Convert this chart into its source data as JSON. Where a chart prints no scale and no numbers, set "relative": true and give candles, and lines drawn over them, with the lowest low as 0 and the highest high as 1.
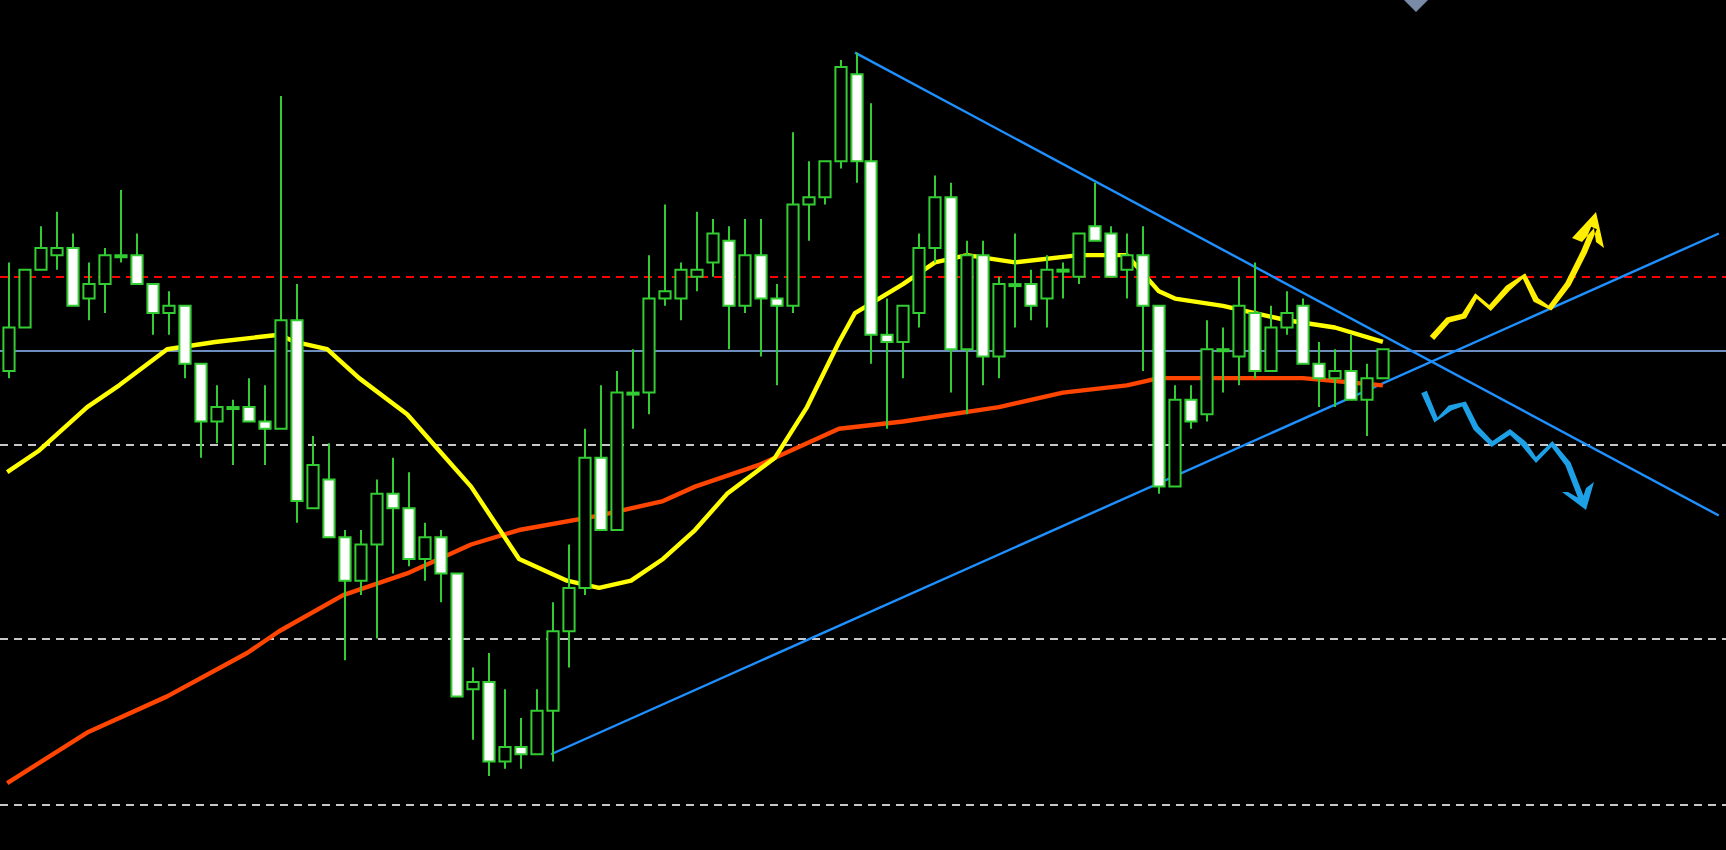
{
  "chart_data": {
    "type": "candlestick",
    "relative": true,
    "grid": false,
    "legend": false,
    "categories": [
      null,
      null,
      null,
      null,
      null,
      null,
      null,
      null,
      null,
      null,
      null,
      null,
      null,
      null,
      null,
      null,
      null,
      null,
      null,
      null,
      null,
      null,
      null,
      null,
      null,
      null,
      null,
      null,
      null,
      null,
      null,
      null,
      null,
      null,
      null,
      null,
      null,
      null,
      null,
      null,
      null,
      null,
      null,
      null,
      null,
      null,
      null,
      null,
      null,
      null,
      null,
      null,
      null,
      null,
      null,
      null,
      null,
      null,
      null,
      null,
      null,
      null,
      null,
      null,
      null,
      null,
      null,
      null,
      null,
      null,
      null,
      null,
      null,
      null,
      null,
      null,
      null,
      null,
      null,
      null,
      null,
      null,
      null,
      null,
      null,
      null,
      null,
      null,
      null,
      null,
      null,
      null,
      null,
      null,
      null,
      null,
      null,
      null,
      null,
      null,
      null,
      null,
      null,
      null,
      null,
      null,
      null,
      null
    ],
    "ohlc": [
      [
        0.56,
        0.71,
        0.55,
        0.62
      ],
      [
        0.62,
        0.7,
        0.62,
        0.7
      ],
      [
        0.7,
        0.76,
        0.7,
        0.73
      ],
      [
        0.72,
        0.78,
        0.7,
        0.73
      ],
      [
        0.73,
        0.75,
        0.65,
        0.65
      ],
      [
        0.66,
        0.71,
        0.63,
        0.68
      ],
      [
        0.68,
        0.73,
        0.64,
        0.72
      ],
      [
        0.72,
        0.81,
        0.71,
        0.72
      ],
      [
        0.72,
        0.75,
        0.68,
        0.68
      ],
      [
        0.68,
        0.68,
        0.61,
        0.64
      ],
      [
        0.64,
        0.67,
        0.61,
        0.65
      ],
      [
        0.65,
        0.65,
        0.55,
        0.57
      ],
      [
        0.57,
        0.57,
        0.44,
        0.49
      ],
      [
        0.49,
        0.54,
        0.46,
        0.51
      ],
      [
        0.51,
        0.52,
        0.43,
        0.51
      ],
      [
        0.51,
        0.55,
        0.49,
        0.49
      ],
      [
        0.49,
        0.54,
        0.43,
        0.48
      ],
      [
        0.48,
        0.94,
        0.48,
        0.63
      ],
      [
        0.63,
        0.68,
        0.35,
        0.38
      ],
      [
        0.37,
        0.47,
        0.37,
        0.43
      ],
      [
        0.41,
        0.46,
        0.33,
        0.33
      ],
      [
        0.33,
        0.34,
        0.16,
        0.27
      ],
      [
        0.27,
        0.34,
        0.25,
        0.32
      ],
      [
        0.32,
        0.41,
        0.19,
        0.39
      ],
      [
        0.39,
        0.44,
        0.28,
        0.37
      ],
      [
        0.37,
        0.42,
        0.29,
        0.3
      ],
      [
        0.3,
        0.35,
        0.27,
        0.33
      ],
      [
        0.33,
        0.34,
        0.24,
        0.28
      ],
      [
        0.28,
        0.28,
        0.11,
        0.11
      ],
      [
        0.12,
        0.15,
        0.05,
        0.13
      ],
      [
        0.13,
        0.17,
        0,
        0.02
      ],
      [
        0.02,
        0.12,
        0.01,
        0.04
      ],
      [
        0.04,
        0.08,
        0.01,
        0.03
      ],
      [
        0.03,
        0.12,
        0.03,
        0.09
      ],
      [
        0.09,
        0.24,
        0.02,
        0.2
      ],
      [
        0.2,
        0.32,
        0.15,
        0.26
      ],
      [
        0.26,
        0.48,
        0.25,
        0.44
      ],
      [
        0.44,
        0.54,
        0.34,
        0.34
      ],
      [
        0.34,
        0.56,
        0.34,
        0.53
      ],
      [
        0.53,
        0.59,
        0.48,
        0.53
      ],
      [
        0.53,
        0.72,
        0.5,
        0.66
      ],
      [
        0.66,
        0.79,
        0.65,
        0.67
      ],
      [
        0.66,
        0.71,
        0.63,
        0.7
      ],
      [
        0.69,
        0.78,
        0.67,
        0.7
      ],
      [
        0.71,
        0.77,
        0.69,
        0.75
      ],
      [
        0.74,
        0.76,
        0.59,
        0.65
      ],
      [
        0.65,
        0.77,
        0.64,
        0.72
      ],
      [
        0.72,
        0.77,
        0.58,
        0.66
      ],
      [
        0.66,
        0.68,
        0.54,
        0.65
      ],
      [
        0.65,
        0.89,
        0.64,
        0.79
      ],
      [
        0.79,
        0.85,
        0.74,
        0.8
      ],
      [
        0.8,
        0.85,
        0.79,
        0.85
      ],
      [
        0.85,
        0.99,
        0.84,
        0.98
      ],
      [
        0.97,
        1,
        0.82,
        0.85
      ],
      [
        0.85,
        0.93,
        0.57,
        0.61
      ],
      [
        0.61,
        0.66,
        0.48,
        0.6
      ],
      [
        0.6,
        0.65,
        0.55,
        0.65
      ],
      [
        0.64,
        0.75,
        0.62,
        0.73
      ],
      [
        0.73,
        0.83,
        0.71,
        0.8
      ],
      [
        0.8,
        0.82,
        0.53,
        0.59
      ],
      [
        0.59,
        0.74,
        0.5,
        0.72
      ],
      [
        0.72,
        0.74,
        0.54,
        0.58
      ],
      [
        0.58,
        0.69,
        0.55,
        0.68
      ],
      [
        0.68,
        0.75,
        0.62,
        0.68
      ],
      [
        0.68,
        0.7,
        0.63,
        0.65
      ],
      [
        0.66,
        0.72,
        0.62,
        0.7
      ],
      [
        0.7,
        0.71,
        0.66,
        0.7
      ],
      [
        0.69,
        0.75,
        0.68,
        0.75
      ],
      [
        0.76,
        0.82,
        0.74,
        0.74
      ],
      [
        0.75,
        0.76,
        0.69,
        0.69
      ],
      [
        0.7,
        0.75,
        0.66,
        0.72
      ],
      [
        0.72,
        0.76,
        0.56,
        0.65
      ],
      [
        0.65,
        0.65,
        0.39,
        0.4
      ],
      [
        0.4,
        0.54,
        0.4,
        0.52
      ],
      [
        0.52,
        0.54,
        0.48,
        0.49
      ],
      [
        0.5,
        0.63,
        0.49,
        0.59
      ],
      [
        0.59,
        0.62,
        0.53,
        0.59
      ],
      [
        0.58,
        0.69,
        0.54,
        0.65
      ],
      [
        0.64,
        0.71,
        0.55,
        0.56
      ],
      [
        0.56,
        0.65,
        0.56,
        0.62
      ],
      [
        0.62,
        0.67,
        0.61,
        0.64
      ],
      [
        0.65,
        0.66,
        0.57,
        0.57
      ],
      [
        0.57,
        0.6,
        0.51,
        0.55
      ],
      [
        0.55,
        0.59,
        0.51,
        0.56
      ],
      [
        0.56,
        0.61,
        0.52,
        0.52
      ],
      [
        0.52,
        0.57,
        0.47,
        0.55
      ],
      [
        0.55,
        0.59,
        0.55,
        0.59
      ],
      null,
      null,
      null,
      null,
      null,
      null,
      null,
      null,
      null,
      null,
      null,
      null,
      null,
      null,
      null,
      null,
      null,
      null,
      null,
      null,
      null
    ],
    "series": [
      {
        "type": "line",
        "color": "#ffff00",
        "values": [
          0.42,
          null,
          0.45,
          null,
          null,
          0.51,
          null,
          0.54,
          null,
          null,
          0.59,
          null,
          null,
          0.6,
          null,
          null,
          null,
          0.61,
          0.6,
          null,
          0.59,
          null,
          0.55,
          null,
          null,
          0.5,
          null,
          0.45,
          null,
          0.4,
          null,
          null,
          0.3,
          null,
          null,
          0.27,
          null,
          0.26,
          null,
          0.27,
          null,
          0.3,
          null,
          0.34,
          null,
          0.39,
          null,
          null,
          0.44,
          null,
          0.51,
          null,
          0.6,
          0.64,
          null,
          null,
          0.68,
          null,
          0.71,
          null,
          0.72,
          null,
          null,
          0.71,
          null,
          null,
          null,
          0.72,
          null,
          null,
          0.72,
          null,
          0.67,
          0.66,
          null,
          null,
          0.65,
          null,
          null,
          null,
          0.63,
          null,
          null,
          0.62,
          null,
          null,
          0.6,
          null,
          null,
          null,
          null,
          null,
          null,
          null,
          null,
          null,
          null,
          null,
          null,
          null,
          null,
          null,
          null,
          null,
          null,
          null,
          null,
          null
        ]
      },
      {
        "type": "line",
        "color": "#ff4500",
        "values": [
          -0.01,
          null,
          null,
          null,
          null,
          0.06,
          null,
          null,
          null,
          null,
          0.11,
          null,
          null,
          null,
          null,
          0.17,
          null,
          0.2,
          null,
          null,
          null,
          0.25,
          null,
          null,
          null,
          0.28,
          null,
          null,
          null,
          0.32,
          null,
          null,
          0.34,
          null,
          null,
          null,
          null,
          0.36,
          null,
          null,
          null,
          0.38,
          null,
          0.4,
          null,
          null,
          null,
          0.43,
          null,
          null,
          0.46,
          null,
          0.48,
          null,
          null,
          null,
          0.49,
          null,
          null,
          null,
          null,
          null,
          0.51,
          null,
          null,
          null,
          0.53,
          null,
          null,
          null,
          0.54,
          null,
          0.55,
          null,
          null,
          null,
          null,
          0.55,
          null,
          null,
          null,
          0.55,
          null,
          null,
          null,
          null,
          0.54,
          null,
          null,
          null,
          null,
          null,
          null,
          null,
          null,
          null,
          null,
          null,
          null,
          null,
          null,
          null,
          null,
          null,
          null,
          null,
          null,
          null
        ]
      },
      {
        "type": "line",
        "color": "#1e90ff",
        "values": [
          null,
          null,
          null,
          null,
          null,
          null,
          null,
          null,
          null,
          null,
          null,
          null,
          null,
          null,
          null,
          null,
          null,
          null,
          null,
          null,
          null,
          null,
          null,
          null,
          null,
          null,
          null,
          null,
          null,
          null,
          null,
          null,
          null,
          null,
          0.03,
          null,
          null,
          null,
          null,
          null,
          null,
          null,
          null,
          null,
          null,
          null,
          null,
          null,
          null,
          null,
          null,
          null,
          null,
          null,
          null,
          null,
          null,
          null,
          null,
          null,
          null,
          null,
          null,
          null,
          null,
          null,
          null,
          null,
          null,
          null,
          null,
          null,
          null,
          null,
          null,
          null,
          null,
          null,
          null,
          null,
          null,
          null,
          null,
          null,
          null,
          null,
          null,
          null,
          null,
          null,
          null,
          null,
          null,
          null,
          null,
          null,
          null,
          null,
          null,
          null,
          null,
          null,
          null,
          null,
          null,
          null,
          null,
          0.75
        ]
      },
      {
        "type": "line",
        "color": "#1e90ff",
        "values": [
          null,
          null,
          null,
          null,
          null,
          null,
          null,
          null,
          null,
          null,
          null,
          null,
          null,
          null,
          null,
          null,
          null,
          null,
          null,
          null,
          null,
          null,
          null,
          null,
          null,
          null,
          null,
          null,
          null,
          null,
          null,
          null,
          null,
          null,
          null,
          null,
          null,
          null,
          null,
          null,
          null,
          null,
          null,
          null,
          null,
          null,
          null,
          null,
          null,
          null,
          null,
          null,
          null,
          1,
          null,
          null,
          null,
          null,
          null,
          null,
          null,
          null,
          null,
          null,
          null,
          null,
          null,
          null,
          null,
          null,
          null,
          null,
          null,
          null,
          null,
          null,
          null,
          null,
          null,
          null,
          null,
          null,
          null,
          null,
          null,
          null,
          null,
          null,
          null,
          null,
          null,
          null,
          null,
          null,
          null,
          null,
          null,
          null,
          null,
          null,
          null,
          null,
          null,
          null,
          null,
          null,
          null,
          0.36
        ]
      }
    ],
    "ref_lines": [
      {
        "axis": "y",
        "value": 0.69,
        "color": "#ff0000",
        "line_style": "dashed"
      },
      {
        "axis": "y",
        "value": 0.59,
        "color": "#6c8ebf",
        "line_style": "solid"
      },
      {
        "axis": "y",
        "value": 0.46,
        "color": "#c8c8c8",
        "line_style": "dashed"
      },
      {
        "axis": "y",
        "value": 0.19,
        "color": "#c8c8c8",
        "line_style": "dashed"
      },
      {
        "axis": "y",
        "value": -0.04,
        "color": "#c8c8c8",
        "line_style": "dashed"
      }
    ]
  }
}
